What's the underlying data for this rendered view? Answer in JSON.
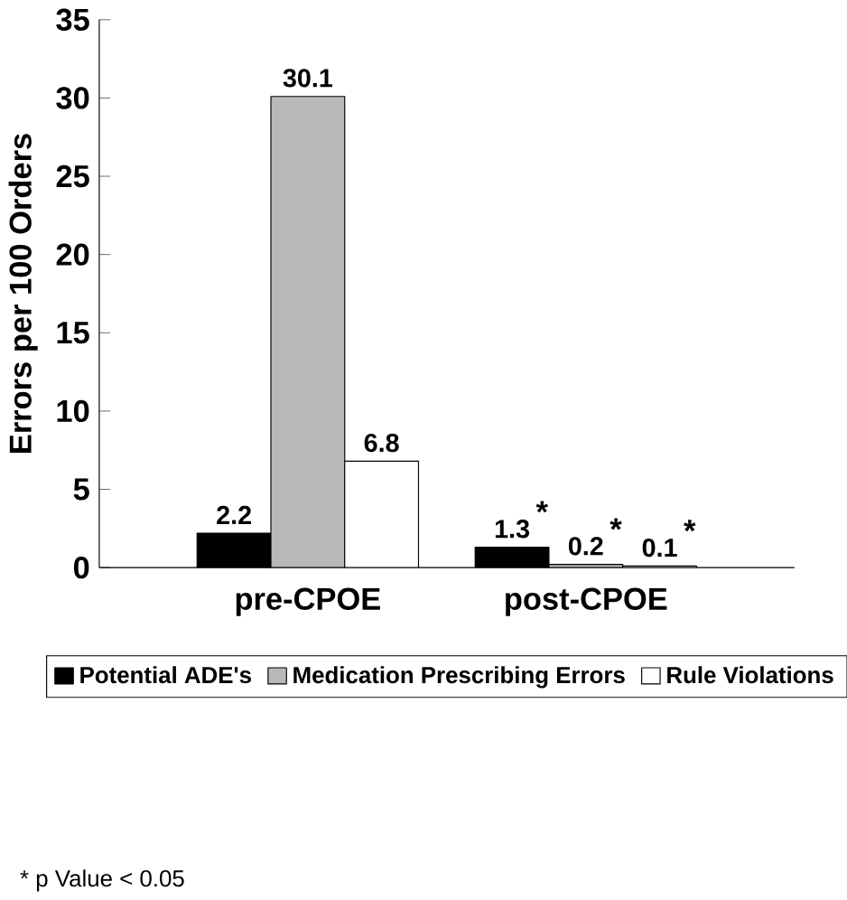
{
  "chart_data": {
    "type": "bar",
    "ylabel": "Errors per 100 Orders",
    "categories": [
      "pre-CPOE",
      "post-CPOE"
    ],
    "series": [
      {
        "name": "Potential ADE's",
        "color": "#000000",
        "values": [
          2.2,
          1.3
        ]
      },
      {
        "name": "Medication Prescribing Errors",
        "color": "#b8b8b8",
        "values": [
          30.1,
          0.2
        ]
      },
      {
        "name": "Rule Violations",
        "color": "#ffffff",
        "values": [
          6.8,
          0.1
        ]
      }
    ],
    "ylim": [
      0,
      35
    ],
    "yticks": [
      0,
      5,
      10,
      15,
      20,
      25,
      30,
      35
    ],
    "data_labels": true,
    "legend": "bottom",
    "grid": false,
    "annotations": [
      "*",
      "*",
      "*",
      "* p Value < 0.05"
    ]
  }
}
